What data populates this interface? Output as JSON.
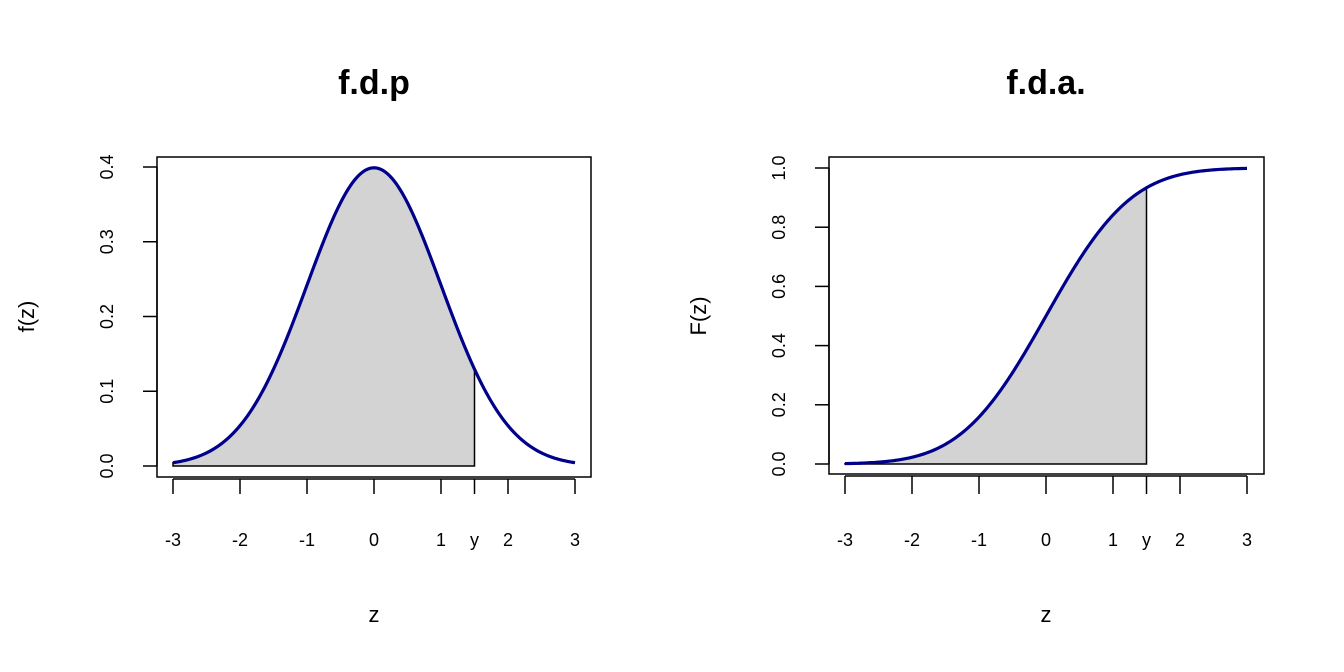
{
  "chart_data": [
    {
      "type": "area",
      "title": "f.d.p",
      "xlabel": "z",
      "ylabel": "f(z)",
      "xlim": [
        -3,
        3
      ],
      "ylim": [
        0,
        0.4
      ],
      "x_ticks": [
        "-3",
        "-2",
        "-1",
        "0",
        "1",
        "y",
        "2",
        "3"
      ],
      "x_tick_values": [
        -3,
        -2,
        -1,
        0,
        1,
        1.5,
        2,
        3
      ],
      "y_ticks": [
        "0.0",
        "0.1",
        "0.2",
        "0.3",
        "0.4"
      ],
      "y_tick_values": [
        0,
        0.1,
        0.2,
        0.3,
        0.4
      ],
      "shade_from": -3,
      "shade_to": 1.5,
      "curve": {
        "x": [
          -3,
          -2.5,
          -2,
          -1.5,
          -1,
          -0.5,
          0,
          0.5,
          1,
          1.5,
          2,
          2.5,
          3
        ],
        "y": [
          0.004,
          0.018,
          0.054,
          0.13,
          0.242,
          0.352,
          0.399,
          0.352,
          0.242,
          0.13,
          0.054,
          0.018,
          0.004
        ]
      },
      "colors": {
        "curve": "#00008b",
        "fill": "#d3d3d3"
      }
    },
    {
      "type": "area",
      "title": "f.d.a.",
      "xlabel": "z",
      "ylabel": "F(z)",
      "xlim": [
        -3,
        3
      ],
      "ylim": [
        0,
        1
      ],
      "x_ticks": [
        "-3",
        "-2",
        "-1",
        "0",
        "1",
        "y",
        "2",
        "3"
      ],
      "x_tick_values": [
        -3,
        -2,
        -1,
        0,
        1,
        1.5,
        2,
        3
      ],
      "y_ticks": [
        "0.0",
        "0.2",
        "0.4",
        "0.6",
        "0.8",
        "1.0"
      ],
      "y_tick_values": [
        0,
        0.2,
        0.4,
        0.6,
        0.8,
        1.0
      ],
      "shade_from": -3,
      "shade_to": 1.5,
      "curve": {
        "x": [
          -3,
          -2.5,
          -2,
          -1.5,
          -1,
          -0.5,
          0,
          0.5,
          1,
          1.5,
          2,
          2.5,
          3
        ],
        "y": [
          0.001,
          0.006,
          0.023,
          0.067,
          0.159,
          0.309,
          0.5,
          0.691,
          0.841,
          0.933,
          0.977,
          0.994,
          0.999
        ]
      },
      "colors": {
        "curve": "#00008b",
        "fill": "#d3d3d3"
      }
    }
  ]
}
